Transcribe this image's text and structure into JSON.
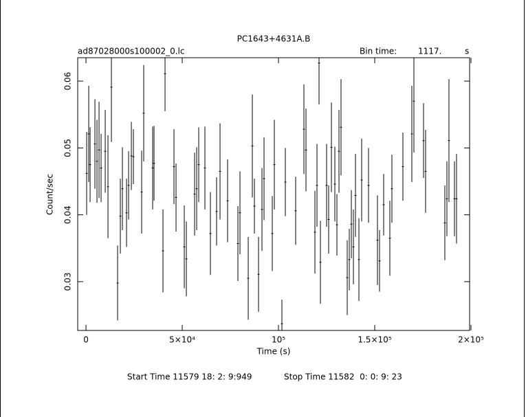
{
  "chart_data": {
    "type": "errorbar",
    "title": "PC1643+4631A.B",
    "subtitle": "ad87028000s100002_0.lc",
    "bin_time_label": "Bin time:",
    "bin_time": "1117.",
    "bin_time_unit": "s",
    "x_label": "Time (s)",
    "y_label": "Count/sec",
    "start_time": "Start Time 11579 18: 2: 9:949",
    "stop_time": "Stop Time 11582  0: 0: 9: 23",
    "color": "#000000",
    "xlim": [
      -4300,
      199300
    ],
    "ylim": [
      0.0227,
      0.0635
    ],
    "xticks": [
      0,
      {
        "value": 50000,
        "label": "5×10⁴"
      },
      {
        "value": 100000,
        "label": "10⁵"
      },
      {
        "value": 150000,
        "label": "1.5×10⁵"
      },
      {
        "value": 200000,
        "label": "2×10⁵"
      }
    ],
    "yticks": [
      0.03,
      0.04,
      0.05,
      0.06
    ],
    "x": [
      357,
      1429,
      2143,
      4643,
      5714,
      6786,
      7857,
      10000,
      11429,
      13214,
      16429,
      17857,
      18929,
      21071,
      22143,
      23571,
      24643,
      28929,
      30000,
      34643,
      35357,
      40000,
      41071,
      45714,
      46786,
      51071,
      52143,
      56429,
      57500,
      58571,
      61786,
      64643,
      67857,
      69643,
      73571,
      78929,
      80000,
      84286,
      86429,
      87500,
      89643,
      91429,
      92500,
      96786,
      97857,
      101786,
      103571,
      108929,
      113214,
      114286,
      118929,
      120000,
      121071,
      121786,
      125000,
      126071,
      127500,
      129286,
      130357,
      131429,
      132500,
      135714,
      136786,
      137857,
      138929,
      140000,
      141786,
      143214,
      146786,
      151429,
      152500,
      154643,
      157857,
      158929,
      164643,
      169286,
      170357,
      175357,
      176429,
      186429,
      187500,
      188571,
      191429,
      192500
    ],
    "values": [
      0.0462,
      0.0521,
      0.0475,
      0.0506,
      0.048,
      0.0497,
      0.047,
      0.0495,
      0.0442,
      0.0591,
      0.0298,
      0.0398,
      0.0439,
      0.0403,
      0.0444,
      0.0488,
      0.0487,
      0.0434,
      0.0552,
      0.047,
      0.0477,
      0.0346,
      0.0611,
      0.0472,
      0.0426,
      0.0352,
      0.0334,
      0.0431,
      0.0439,
      0.0475,
      0.047,
      0.0372,
      0.0405,
      0.0465,
      0.0421,
      0.0357,
      0.0403,
      0.0305,
      0.0503,
      0.0413,
      0.0311,
      0.0408,
      0.0454,
      0.0372,
      0.0475,
      0.0237,
      0.0449,
      0.0406,
      0.0528,
      0.0497,
      0.0374,
      0.0444,
      0.0627,
      0.0329,
      0.0444,
      0.0393,
      0.0501,
      0.0446,
      0.0385,
      0.0495,
      0.0531,
      0.0306,
      0.0333,
      0.0386,
      0.0352,
      0.0429,
      0.0333,
      0.0452,
      0.0444,
      0.0362,
      0.0331,
      0.0415,
      0.0365,
      0.0439,
      0.0472,
      0.0521,
      0.057,
      0.0511,
      0.0465,
      0.0388,
      0.0424,
      0.0511,
      0.0424,
      0.0424
    ],
    "errors": [
      0.0062,
      0.0072,
      0.0056,
      0.0067,
      0.0062,
      0.0072,
      0.0051,
      0.0062,
      0.0077,
      0.0082,
      0.0056,
      0.0056,
      0.0062,
      0.0051,
      0.0051,
      0.0051,
      0.0041,
      0.0062,
      0.0072,
      0.0062,
      0.0056,
      0.0062,
      0.0056,
      0.0056,
      0.0051,
      0.0062,
      0.0056,
      0.0062,
      0.0062,
      0.0056,
      0.0062,
      0.0062,
      0.0051,
      0.0072,
      0.0062,
      0.0056,
      0.0062,
      0.0062,
      0.0077,
      0.0041,
      0.0056,
      0.0062,
      0.0062,
      0.0056,
      0.0067,
      0.0036,
      0.0051,
      0.0051,
      0.0067,
      0.0062,
      0.0062,
      0.0062,
      0.0062,
      0.0062,
      0.0062,
      0.0051,
      0.0067,
      0.0056,
      0.0046,
      0.0062,
      0.0072,
      0.0056,
      0.0046,
      0.0051,
      0.0056,
      0.0062,
      0.0062,
      0.0062,
      0.0056,
      0.0067,
      0.0046,
      0.0046,
      0.0056,
      0.0051,
      0.0051,
      0.0072,
      0.0077,
      0.0056,
      0.0062,
      0.0056,
      0.0056,
      0.0092,
      0.0056,
      0.0067
    ]
  }
}
